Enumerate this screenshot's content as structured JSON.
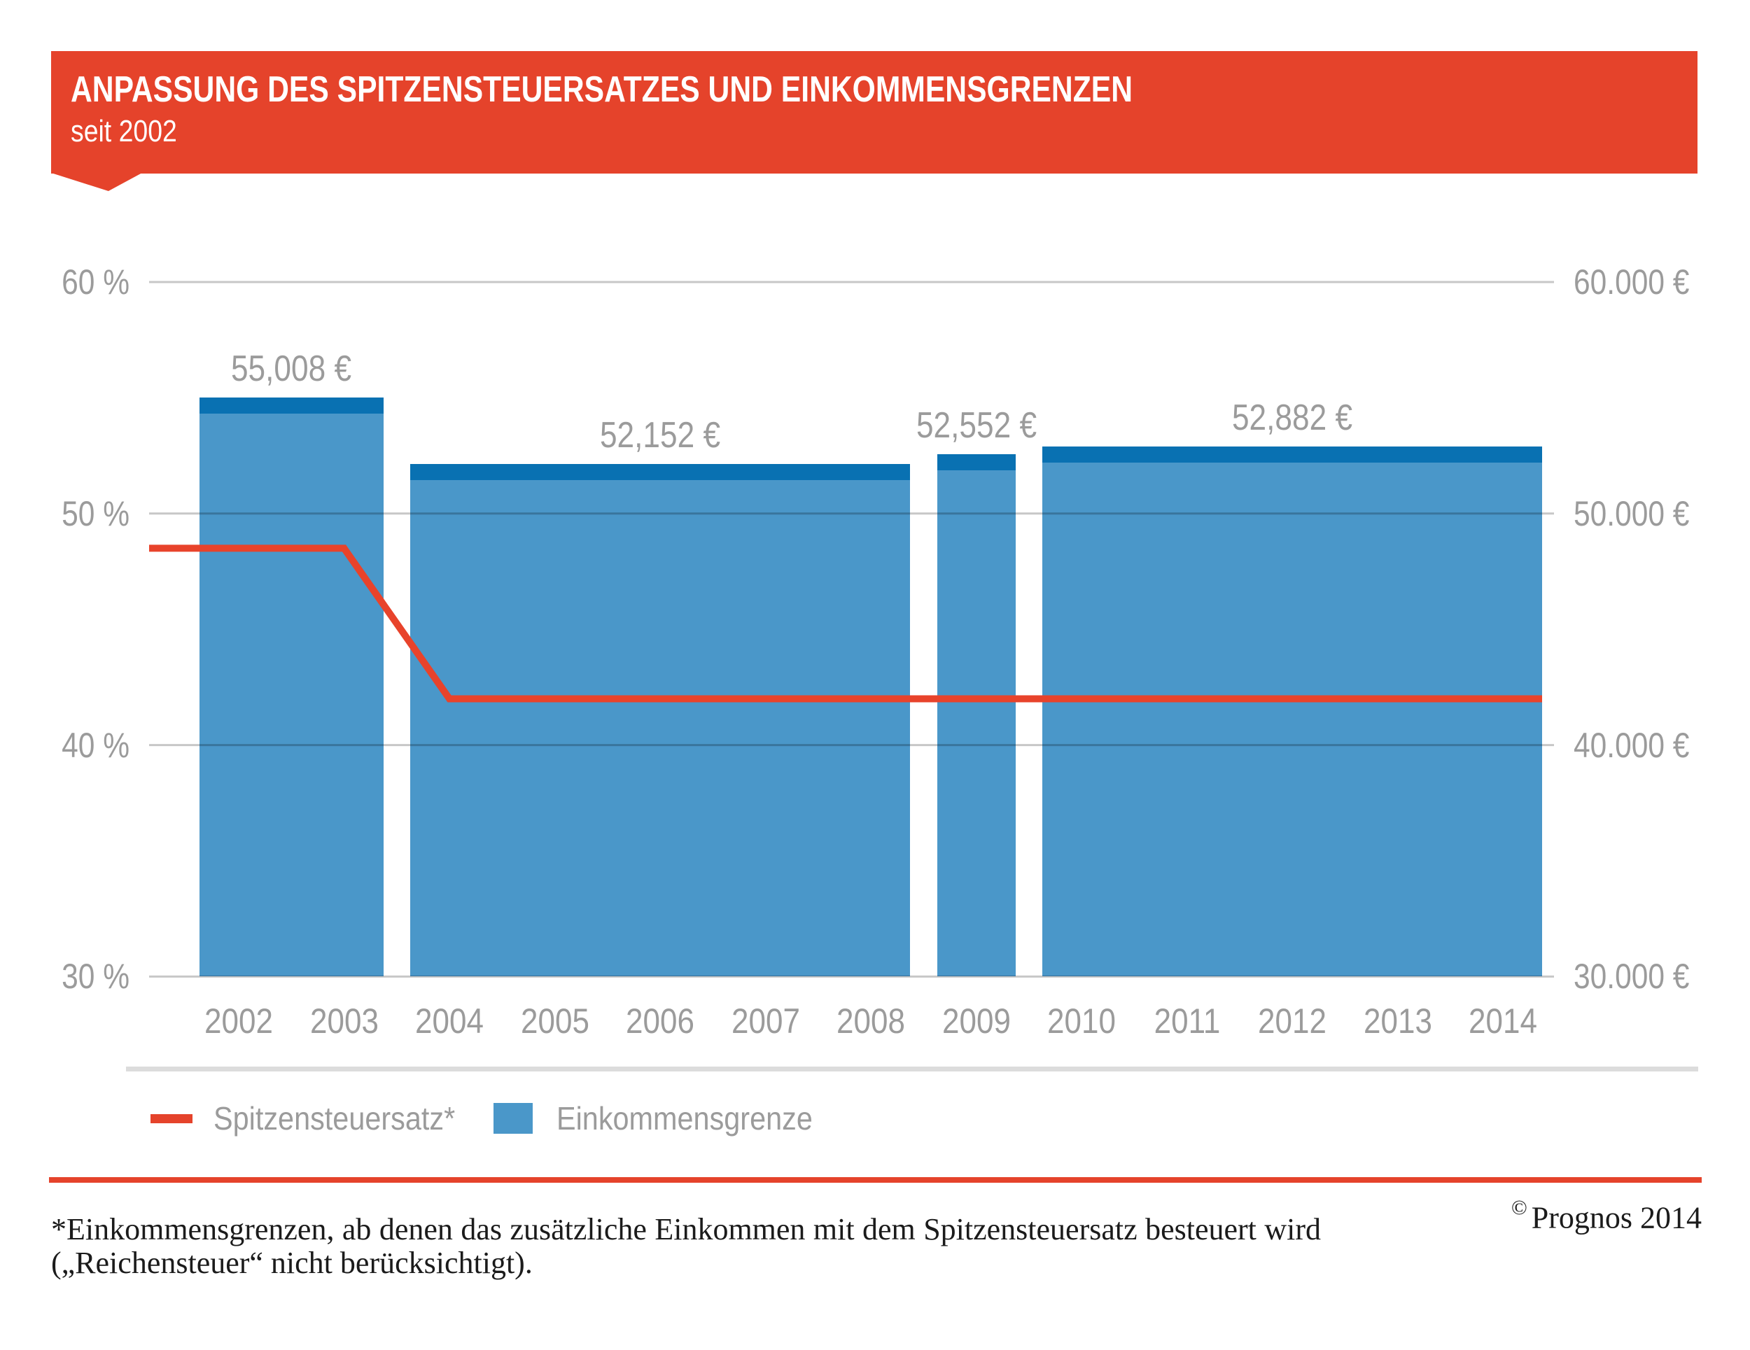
{
  "header": {
    "title": "ANPASSUNG DES SPITZENSTEUERSATZES UND EINKOMMENSGRENZEN",
    "subtitle": "seit 2002"
  },
  "colors": {
    "accent_red": "#e5432b",
    "line_red": "#e8432b",
    "bar_blue": "#4a97c9",
    "bar_cap_blue": "#0971b2",
    "text_gray": "#9b9b9b",
    "gridline": "rgba(0,0,0,0.22)",
    "separator_gray": "#dcdcdc",
    "footer_black": "#1b1b1b"
  },
  "chart_data": {
    "type": "bar",
    "x": [
      2002,
      2003,
      2004,
      2005,
      2006,
      2007,
      2008,
      2009,
      2010,
      2011,
      2012,
      2013,
      2014
    ],
    "series": [
      {
        "name": "Einkommensgrenze",
        "type": "bar",
        "unit": "EUR",
        "values": [
          55008,
          55008,
          52152,
          52152,
          52152,
          52152,
          52152,
          52552,
          52882,
          52882,
          52882,
          52882,
          52882
        ]
      },
      {
        "name": "Spitzensteuersatz",
        "type": "line",
        "unit": "%",
        "values": [
          48.5,
          48.5,
          42,
          42,
          42,
          42,
          42,
          42,
          42,
          42,
          42,
          42,
          42
        ]
      }
    ],
    "bar_groups": [
      {
        "years": [
          2002,
          2003
        ],
        "value": 55008,
        "label": "55,008 €"
      },
      {
        "years": [
          2004,
          2008
        ],
        "value": 52152,
        "label": "52,152 €"
      },
      {
        "years": [
          2009,
          2009
        ],
        "value": 52552,
        "label": "52,552 €"
      },
      {
        "years": [
          2010,
          2014
        ],
        "value": 52882,
        "label": "52,882 €"
      }
    ],
    "line_points": [
      {
        "x": "start",
        "v": 48.5
      },
      {
        "year": 2003,
        "v": 48.5
      },
      {
        "year": 2004,
        "v": 42
      },
      {
        "x": "end",
        "v": 42
      }
    ],
    "left_axis": {
      "ticks": [
        "60 %",
        "50 %",
        "40 %",
        "30 %"
      ],
      "values": [
        60,
        50,
        40,
        30
      ]
    },
    "right_axis": {
      "ticks": [
        "60.000 €",
        "50.000 €",
        "40.000 €",
        "30.000 €"
      ],
      "values": [
        60,
        50,
        40,
        30
      ]
    },
    "ylim_percent": [
      30,
      60
    ],
    "ylim_euro": [
      30000,
      60000
    ],
    "grid": true,
    "legend_position": "bottom"
  },
  "legend": {
    "line_label": "Spitzensteuersatz*",
    "bar_label": "Einkommensgrenze"
  },
  "footer": {
    "note_line1": "*Einkommensgrenzen, ab denen das zusätzliche Einkommen mit dem Spitzensteuersatz besteuert wird",
    "note_line2": "(„Reichensteuer“ nicht berücksichtigt).",
    "copyright_symbol": "©",
    "copyright_text": "Prognos 2014"
  }
}
